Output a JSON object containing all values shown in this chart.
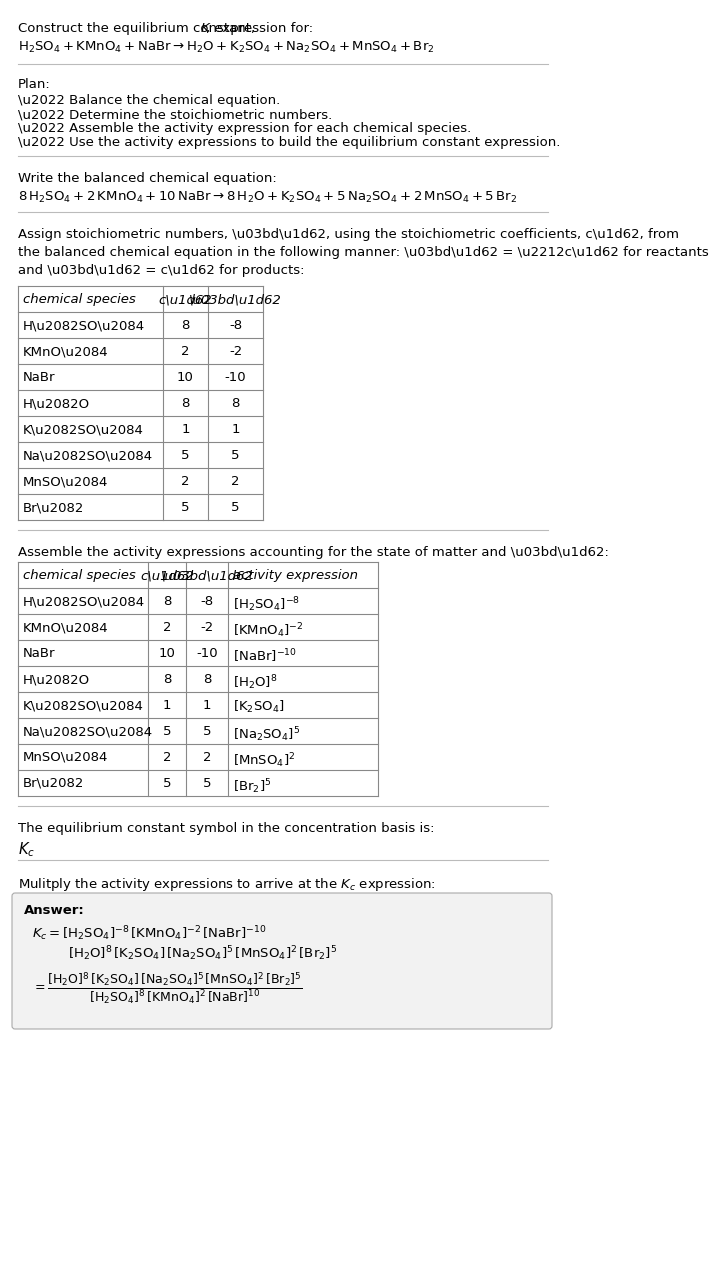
{
  "bg_color": "#ffffff",
  "answer_bg": "#f2f2f2",
  "text_color": "#000000",
  "fs": 9.5,
  "title1": "Construct the equilibrium constant, ",
  "title1_k": "K",
  "title1_end": ", expression for:",
  "unbalanced_eq": "$\\mathregular{H_2SO_4 + KMnO_4 + NaBr \\rightarrow H_2O + K_2SO_4 + Na_2SO_4 + MnSO_4 + Br_2}$",
  "plan_label": "Plan:",
  "plan_items": [
    "\\u2022 Balance the chemical equation.",
    "\\u2022 Determine the stoichiometric numbers.",
    "\\u2022 Assemble the activity expression for each chemical species.",
    "\\u2022 Use the activity expressions to build the equilibrium constant expression."
  ],
  "balanced_label": "Write the balanced chemical equation:",
  "balanced_eq": "$\\mathregular{8\\,H_2SO_4 + 2\\,KMnO_4 + 10\\,NaBr \\rightarrow 8\\,H_2O + K_2SO_4 + 5\\,Na_2SO_4 + 2\\,MnSO_4 + 5\\,Br_2}$",
  "stoich_para": "Assign stoichiometric numbers, \\u03bd\\u1d62, using the stoichiometric coefficients, c\\u1d62, from\nthe balanced chemical equation in the following manner: \\u03bd\\u1d62 = \\u2212c\\u1d62 for reactants\nand \\u03bd\\u1d62 = c\\u1d62 for products:",
  "table1_cols": [
    "chemical species",
    "c\\u1d62",
    "\\u03bd\\u1d62"
  ],
  "table1_data": [
    [
      "H\\u2082SO\\u2084",
      "8",
      "-8"
    ],
    [
      "KMnO\\u2084",
      "2",
      "-2"
    ],
    [
      "NaBr",
      "10",
      "-10"
    ],
    [
      "H\\u2082O",
      "8",
      "8"
    ],
    [
      "K\\u2082SO\\u2084",
      "1",
      "1"
    ],
    [
      "Na\\u2082SO\\u2084",
      "5",
      "5"
    ],
    [
      "MnSO\\u2084",
      "2",
      "2"
    ],
    [
      "Br\\u2082",
      "5",
      "5"
    ]
  ],
  "activity_label": "Assemble the activity expressions accounting for the state of matter and \\u03bd\\u1d62:",
  "table2_cols": [
    "chemical species",
    "c\\u1d62",
    "\\u03bd\\u1d62",
    "activity expression"
  ],
  "table2_data": [
    [
      "H\\u2082SO\\u2084",
      "8",
      "-8",
      "$\\mathregular{[H_2SO_4]^{-8}}$"
    ],
    [
      "KMnO\\u2084",
      "2",
      "-2",
      "$\\mathregular{[KMnO_4]^{-2}}$"
    ],
    [
      "NaBr",
      "10",
      "-10",
      "$\\mathregular{[NaBr]^{-10}}$"
    ],
    [
      "H\\u2082O",
      "8",
      "8",
      "$\\mathregular{[H_2O]^{8}}$"
    ],
    [
      "K\\u2082SO\\u2084",
      "1",
      "1",
      "$\\mathregular{[K_2SO_4]}$"
    ],
    [
      "Na\\u2082SO\\u2084",
      "5",
      "5",
      "$\\mathregular{[Na_2SO_4]^{5}}$"
    ],
    [
      "MnSO\\u2084",
      "2",
      "2",
      "$\\mathregular{[MnSO_4]^{2}}$"
    ],
    [
      "Br\\u2082",
      "5",
      "5",
      "$\\mathregular{[Br_2]^{5}}$"
    ]
  ],
  "kc_label": "The equilibrium constant symbol in the concentration basis is:",
  "kc_symbol": "$K_c$",
  "multiply_label": "Mulitply the activity expressions to arrive at the $K_c$ expression:",
  "answer_label": "Answer:",
  "ans_line1": "$K_c = \\mathregular{[H_2SO_4]^{-8}\\,[KMnO_4]^{-2}\\,[NaBr]^{-10}}$",
  "ans_line2": "$\\mathregular{[H_2O]^{8}\\,[K_2SO_4]\\,[Na_2SO_4]^{5}\\,[MnSO_4]^{2}\\,[Br_2]^{5}}$",
  "ans_line3": "$= \\dfrac{\\mathregular{[H_2O]^{8}\\,[K_2SO_4]\\,[Na_2SO_4]^{5}\\,[MnSO_4]^{2}\\,[Br_2]^{5}}}{\\mathregular{[H_2SO_4]^{8}\\,[KMnO_4]^{2}\\,[NaBr]^{10}}}$"
}
